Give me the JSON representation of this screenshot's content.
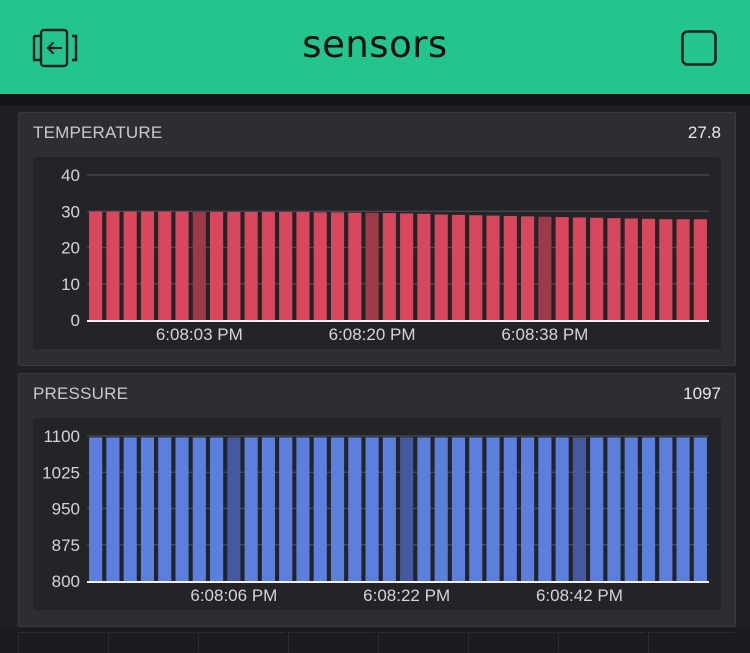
{
  "header": {
    "title": "sensors",
    "left_icon": "exit-icon",
    "right_icon": "square-icon",
    "bg_color": "#23c48e"
  },
  "widgets": [
    {
      "label": "TEMPERATURE",
      "value": "27.8",
      "color": "#d9475e",
      "highlight_color": "#9c3a49"
    },
    {
      "label": "PRESSURE",
      "value": "1097",
      "color": "#5b7fdd",
      "highlight_color": "#46589f"
    }
  ],
  "chart_data": [
    {
      "type": "bar",
      "title": "",
      "xlabel": "",
      "ylabel": "",
      "ylim": [
        0,
        40
      ],
      "y_ticks": [
        "40",
        "30",
        "20",
        "10",
        "0"
      ],
      "x_tick_labels": [
        "6:08:03 PM",
        "6:08:20 PM",
        "6:08:38 PM"
      ],
      "values": [
        29.9,
        29.9,
        29.9,
        29.9,
        29.9,
        29.9,
        29.8,
        29.8,
        29.8,
        29.8,
        29.8,
        29.8,
        29.8,
        29.7,
        29.7,
        29.6,
        29.6,
        29.5,
        29.4,
        29.3,
        29.1,
        29.0,
        28.9,
        28.8,
        28.7,
        28.6,
        28.5,
        28.4,
        28.3,
        28.2,
        28.1,
        28.0,
        27.9,
        27.8,
        27.8,
        27.8
      ],
      "highlighted_indices": [
        6,
        16,
        26
      ],
      "grid": true
    },
    {
      "type": "bar",
      "title": "",
      "xlabel": "",
      "ylabel": "",
      "ylim": [
        800,
        1100
      ],
      "y_ticks": [
        "1100",
        "1025",
        "950",
        "875",
        "800"
      ],
      "x_tick_labels": [
        "6:08:06 PM",
        "6:08:22 PM",
        "6:08:42 PM"
      ],
      "values": [
        1097,
        1097,
        1097,
        1097,
        1097,
        1097,
        1097,
        1097,
        1097,
        1097,
        1097,
        1097,
        1097,
        1097,
        1097,
        1097,
        1097,
        1097,
        1097,
        1097,
        1097,
        1097,
        1097,
        1097,
        1097,
        1097,
        1097,
        1097,
        1097,
        1097,
        1097,
        1097,
        1097,
        1097,
        1097,
        1097
      ],
      "highlighted_indices": [
        8,
        18,
        28
      ],
      "grid": true
    }
  ]
}
